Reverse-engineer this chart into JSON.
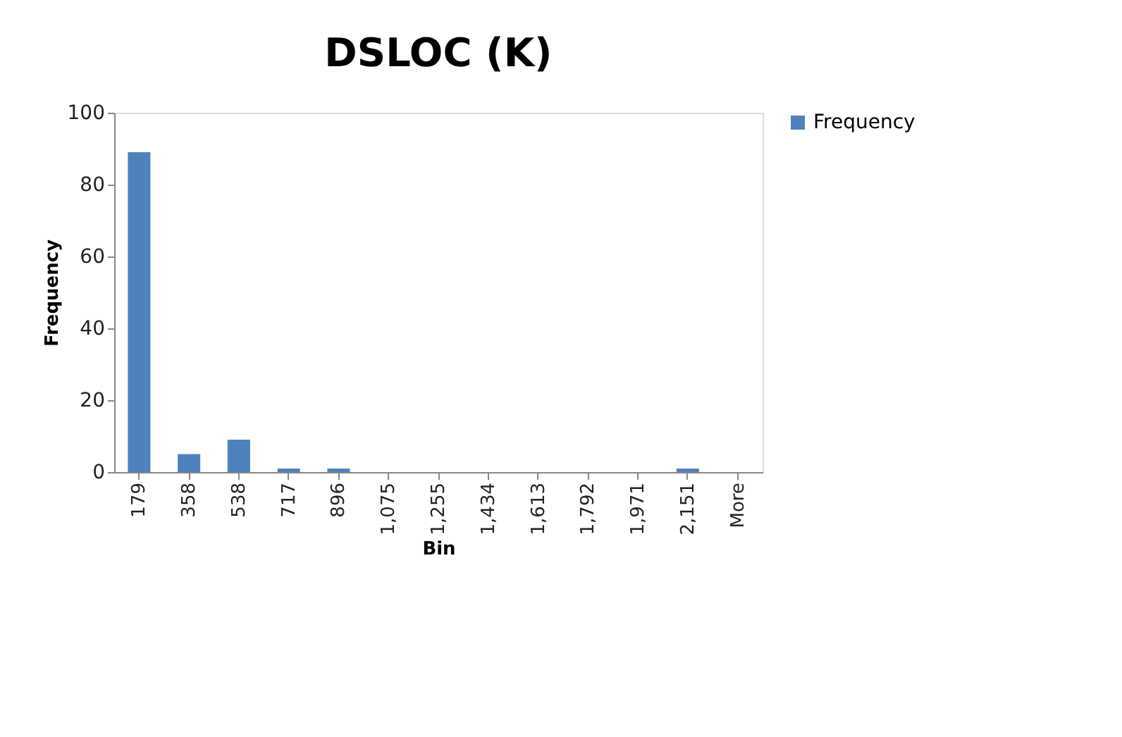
{
  "chart_data": {
    "type": "bar",
    "title": "DSLOC (K)",
    "xlabel": "Bin",
    "ylabel": "Frequency",
    "categories": [
      "179",
      "358",
      "538",
      "717",
      "896",
      "1,075",
      "1,255",
      "1,434",
      "1,613",
      "1,792",
      "1,971",
      "2,151",
      "More"
    ],
    "series": [
      {
        "name": "Frequency",
        "color": "#4f81bd",
        "values": [
          89,
          5,
          9,
          1,
          1,
          0,
          0,
          0,
          0,
          0,
          0,
          1,
          0
        ]
      }
    ],
    "ylim": [
      0,
      100
    ],
    "yticks": [
      0,
      20,
      40,
      60,
      80,
      100
    ],
    "grid": false,
    "legend": "right"
  }
}
